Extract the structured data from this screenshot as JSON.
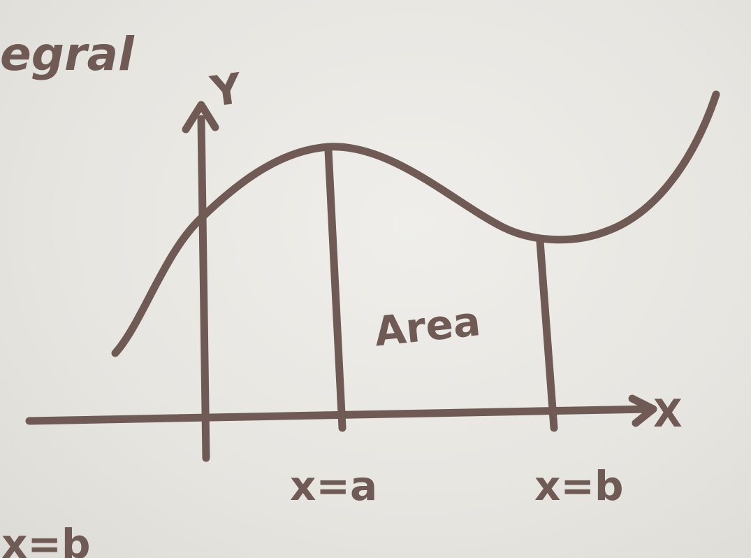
{
  "diagram": {
    "title_fragment": "egral",
    "y_axis_label": "Y",
    "x_axis_label": "X",
    "area_label": "Area",
    "bound_a_label": "x=a",
    "bound_b_label": "x=b",
    "bottom_left_fragment": "x=b"
  },
  "colors": {
    "ink": "#6f5a55",
    "background": "#e8e6e1"
  }
}
